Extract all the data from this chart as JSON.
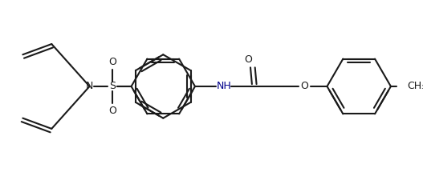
{
  "bg_color": "#ffffff",
  "line_color": "#1a1a1a",
  "nh_color": "#00008B",
  "line_width": 1.5,
  "figsize": [
    5.27,
    2.15
  ],
  "dpi": 100,
  "xlim": [
    0,
    527
  ],
  "ylim": [
    0,
    215
  ]
}
